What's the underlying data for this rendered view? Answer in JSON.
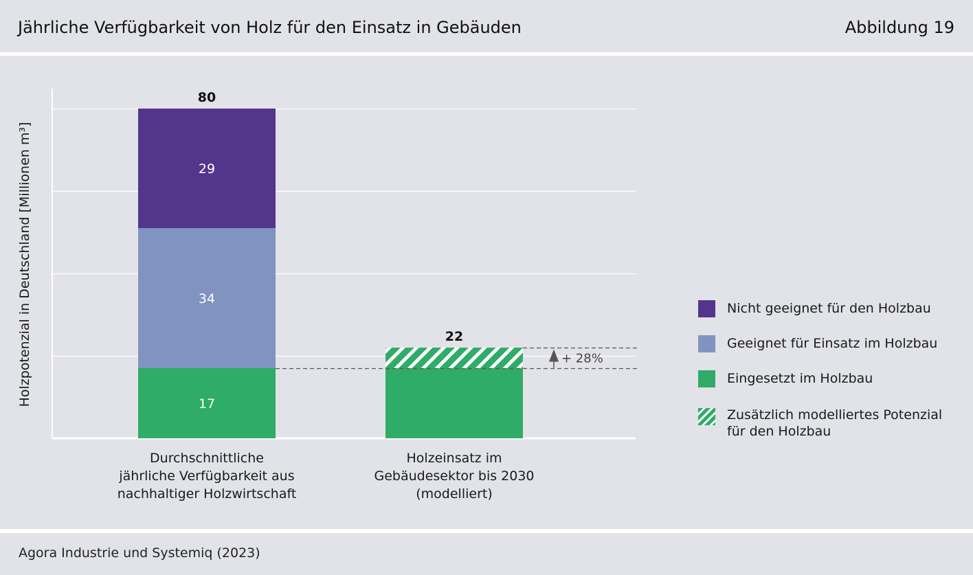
{
  "header": {
    "title": "Jährliche Verfügbarkeit von Holz für den Einsatz in Gebäuden",
    "figure_number": "Abbildung 19"
  },
  "footer": {
    "source": "Agora Industrie und Systemiq (2023)"
  },
  "colors": {
    "panel_background": "#e2e3e8",
    "not_suitable": "#54358c",
    "suitable": "#8193c0",
    "used": "#2fac67",
    "hatch_light": "#ffffff"
  },
  "chart_data": {
    "type": "bar",
    "stacked": true,
    "ylabel": "Holzpotenzial in Deutschland [Millionen m³]",
    "ylim": [
      0,
      84
    ],
    "grid": true,
    "gridlines_at": [
      20,
      40,
      60,
      80
    ],
    "categories": [
      "Durchschnittliche jährliche Verfügbarkeit aus nachhaltiger Holzwirtschaft",
      "Holzeinsatz im Gebäudesektor bis 2030 (modelliert)"
    ],
    "category_label_lines": [
      [
        "Durchschnittliche",
        "jährliche Verfügbarkeit aus",
        "nachhaltiger Holzwirtschaft"
      ],
      [
        "Holzeinsatz im",
        "Gebäudesektor bis 2030",
        "(modelliert)"
      ]
    ],
    "series": [
      {
        "name": "Eingesetzt im Holzbau",
        "color": "#2fac67",
        "pattern": "solid",
        "values": [
          17,
          17
        ],
        "labels": [
          "17",
          ""
        ]
      },
      {
        "name": "Geeignet für Einsatz im Holzbau",
        "color": "#8193c0",
        "pattern": "solid",
        "values": [
          34,
          0
        ],
        "labels": [
          "34",
          ""
        ]
      },
      {
        "name": "Nicht geeignet für den Holzbau",
        "color": "#54358c",
        "pattern": "solid",
        "values": [
          29,
          0
        ],
        "labels": [
          "29",
          ""
        ]
      },
      {
        "name": "Zusätzlich modelliertes Potenzial für den Holzbau",
        "color": "#2fac67",
        "pattern": "hatched",
        "values": [
          0,
          5
        ],
        "labels": [
          "",
          ""
        ]
      }
    ],
    "totals": [
      "80",
      "22"
    ],
    "annotation": {
      "text": "+ 28%",
      "from": 17,
      "to": 22
    },
    "legend": {
      "position": "right",
      "items": [
        {
          "lines": [
            "Nicht geeignet für den Holzbau"
          ],
          "color": "#54358c",
          "pattern": "solid"
        },
        {
          "lines": [
            "Geeignet für Einsatz im Holzbau"
          ],
          "color": "#8193c0",
          "pattern": "solid"
        },
        {
          "lines": [
            "Eingesetzt im Holzbau"
          ],
          "color": "#2fac67",
          "pattern": "solid"
        },
        {
          "lines": [
            "Zusätzlich modelliertes Potenzial",
            "für den Holzbau"
          ],
          "color": "#2fac67",
          "pattern": "hatched"
        }
      ]
    }
  }
}
